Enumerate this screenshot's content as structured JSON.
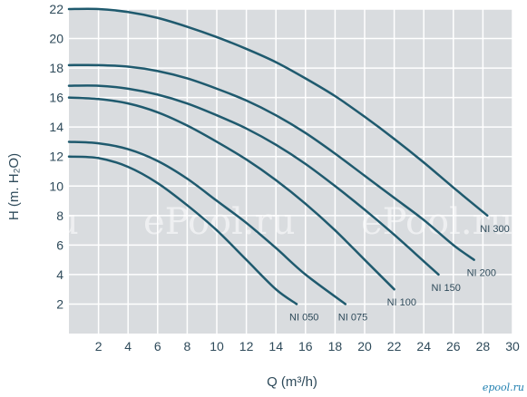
{
  "chart_data": {
    "type": "line",
    "xlabel": "Q (m³/h)",
    "ylabel": "H (m. H₂O)",
    "xlim": [
      0,
      30
    ],
    "ylim": [
      0,
      22
    ],
    "x_ticks": [
      2,
      4,
      6,
      8,
      10,
      12,
      14,
      16,
      18,
      20,
      22,
      24,
      26,
      28,
      30
    ],
    "y_ticks": [
      2,
      4,
      6,
      8,
      10,
      12,
      14,
      16,
      18,
      20,
      22
    ],
    "grid": true,
    "series": [
      {
        "name": "NI 050",
        "x": [
          0,
          2,
          4,
          6,
          8,
          10,
          12,
          14,
          15.4
        ],
        "y": [
          12,
          11.9,
          11.3,
          10.2,
          8.7,
          7.0,
          5.0,
          3.0,
          2.0
        ]
      },
      {
        "name": "NI 075",
        "x": [
          0,
          2,
          4,
          6,
          8,
          10,
          12,
          14,
          16,
          18.7
        ],
        "y": [
          13,
          12.9,
          12.5,
          11.7,
          10.5,
          9.0,
          7.5,
          5.8,
          4.0,
          2.0
        ]
      },
      {
        "name": "NI 100",
        "x": [
          0,
          2,
          4,
          6,
          8,
          10,
          12,
          14,
          16,
          18,
          20,
          22
        ],
        "y": [
          16,
          15.9,
          15.6,
          15.0,
          14.1,
          13.0,
          11.8,
          10.4,
          8.8,
          7.0,
          5.0,
          3.0
        ]
      },
      {
        "name": "NI 150",
        "x": [
          0,
          2,
          4,
          6,
          8,
          10,
          12,
          14,
          16,
          18,
          20,
          22,
          24,
          25
        ],
        "y": [
          16.8,
          16.8,
          16.6,
          16.2,
          15.6,
          14.8,
          13.9,
          12.8,
          11.5,
          10.0,
          8.4,
          6.7,
          4.9,
          4.0
        ]
      },
      {
        "name": "NI 200",
        "x": [
          0,
          2,
          4,
          6,
          8,
          10,
          12,
          14,
          16,
          18,
          20,
          22,
          24,
          26,
          27.4
        ],
        "y": [
          18.2,
          18.2,
          18.1,
          17.8,
          17.3,
          16.6,
          15.8,
          14.8,
          13.6,
          12.2,
          10.7,
          9.2,
          7.7,
          6.0,
          5.0
        ]
      },
      {
        "name": "NI 300",
        "x": [
          0,
          2,
          4,
          6,
          8,
          10,
          12,
          14,
          16,
          18,
          20,
          22,
          24,
          26,
          28.3
        ],
        "y": [
          22,
          22,
          21.8,
          21.4,
          20.8,
          20.1,
          19.3,
          18.4,
          17.3,
          16.1,
          14.7,
          13.2,
          11.6,
          9.9,
          8.0
        ]
      }
    ]
  },
  "watermarks": [
    "ePool.ru",
    "ePool.ru",
    "cl.ru"
  ],
  "corner_logo": "epool.ru",
  "colors": {
    "plot_bg": "#d9dcdf",
    "grid": "#ffffff",
    "curve": "#1f5a6e",
    "text": "#2e4a5a",
    "logo": "#1f7fb0"
  }
}
